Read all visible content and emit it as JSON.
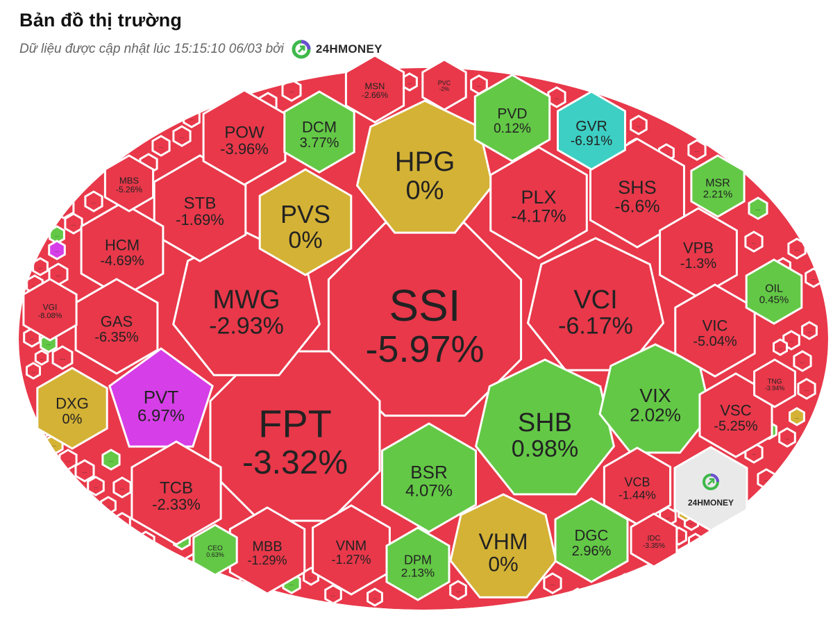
{
  "header": {
    "title": "Bản đồ thị trường",
    "subtitle": "Dữ liệu được cập nhật lúc 15:15:10 06/03 bởi",
    "brand": "24HMONEY"
  },
  "colors": {
    "down": "#e8384a",
    "up": "#63c846",
    "flat": "#d4b235",
    "ceiling": "#d63ee8",
    "floor": "#3dcfc3",
    "logo_green": "#3fb84a",
    "logo_purple": "#6a4fd1"
  },
  "more_label": "...",
  "center_logo": "24HMONEY",
  "tiles": [
    {
      "id": "SSI",
      "symbol": "SSI",
      "change": "-5.97%",
      "status": "down"
    },
    {
      "id": "FPT",
      "symbol": "FPT",
      "change": "-3.32%",
      "status": "down"
    },
    {
      "id": "MWG",
      "symbol": "MWG",
      "change": "-2.93%",
      "status": "down"
    },
    {
      "id": "VCI",
      "symbol": "VCI",
      "change": "-6.17%",
      "status": "down"
    },
    {
      "id": "HPG",
      "symbol": "HPG",
      "change": "0%",
      "status": "flat"
    },
    {
      "id": "SHB",
      "symbol": "SHB",
      "change": "0.98%",
      "status": "up"
    },
    {
      "id": "PVS",
      "symbol": "PVS",
      "change": "0%",
      "status": "flat"
    },
    {
      "id": "PLX",
      "symbol": "PLX",
      "change": "-4.17%",
      "status": "down"
    },
    {
      "id": "SHS",
      "symbol": "SHS",
      "change": "-6.6%",
      "status": "down"
    },
    {
      "id": "STB",
      "symbol": "STB",
      "change": "-1.69%",
      "status": "down"
    },
    {
      "id": "POW",
      "symbol": "POW",
      "change": "-3.96%",
      "status": "down"
    },
    {
      "id": "DCM",
      "symbol": "DCM",
      "change": "3.77%",
      "status": "up"
    },
    {
      "id": "PVD",
      "symbol": "PVD",
      "change": "0.12%",
      "status": "up"
    },
    {
      "id": "GVR",
      "symbol": "GVR",
      "change": "-6.91%",
      "status": "floor"
    },
    {
      "id": "HCM",
      "symbol": "HCM",
      "change": "-4.69%",
      "status": "down"
    },
    {
      "id": "GAS",
      "symbol": "GAS",
      "change": "-6.35%",
      "status": "down"
    },
    {
      "id": "PVT",
      "symbol": "PVT",
      "change": "6.97%",
      "status": "ceiling"
    },
    {
      "id": "DXG",
      "symbol": "DXG",
      "change": "0%",
      "status": "flat"
    },
    {
      "id": "TCB",
      "symbol": "TCB",
      "change": "-2.33%",
      "status": "down"
    },
    {
      "id": "MBB",
      "symbol": "MBB",
      "change": "-1.29%",
      "status": "down"
    },
    {
      "id": "VNM",
      "symbol": "VNM",
      "change": "-1.27%",
      "status": "down"
    },
    {
      "id": "BSR",
      "symbol": "BSR",
      "change": "4.07%",
      "status": "up"
    },
    {
      "id": "DPM",
      "symbol": "DPM",
      "change": "2.13%",
      "status": "up"
    },
    {
      "id": "VHM",
      "symbol": "VHM",
      "change": "0%",
      "status": "flat"
    },
    {
      "id": "DGC",
      "symbol": "DGC",
      "change": "2.96%",
      "status": "up"
    },
    {
      "id": "VIX",
      "symbol": "VIX",
      "change": "2.02%",
      "status": "up"
    },
    {
      "id": "VPB",
      "symbol": "VPB",
      "change": "-1.3%",
      "status": "down"
    },
    {
      "id": "VIC",
      "symbol": "VIC",
      "change": "-5.04%",
      "status": "down"
    },
    {
      "id": "VSC",
      "symbol": "VSC",
      "change": "-5.25%",
      "status": "down"
    },
    {
      "id": "VCB",
      "symbol": "VCB",
      "change": "-1.44%",
      "status": "down"
    },
    {
      "id": "MSR",
      "symbol": "MSR",
      "change": "2.21%",
      "status": "up"
    },
    {
      "id": "OIL",
      "symbol": "OIL",
      "change": "0.45%",
      "status": "up"
    },
    {
      "id": "MBS",
      "symbol": "MBS",
      "change": "-5.26%",
      "status": "down"
    },
    {
      "id": "MSN",
      "symbol": "MSN",
      "change": "-2.66%",
      "status": "down"
    },
    {
      "id": "PVC",
      "symbol": "PVC",
      "change": "-2%",
      "status": "down"
    },
    {
      "id": "VGI",
      "symbol": "VGI",
      "change": "-8.08%",
      "status": "down"
    },
    {
      "id": "CEO",
      "symbol": "CEO",
      "change": "0.63%",
      "status": "up"
    },
    {
      "id": "IDC",
      "symbol": "IDC",
      "change": "-3.35%",
      "status": "down"
    },
    {
      "id": "TNG",
      "symbol": "TNG",
      "change": "-3.94%",
      "status": "down"
    }
  ],
  "small_tiles": [
    "down",
    "down",
    "down",
    "up",
    "down",
    "down",
    "down",
    "down",
    "up",
    "down",
    "ceiling",
    "down",
    "down",
    "down",
    "flat",
    "down",
    "down",
    "down",
    "up",
    "down",
    "down",
    "down",
    "down",
    "up",
    "down",
    "down",
    "up",
    "down",
    "down",
    "down",
    "down",
    "down",
    "down",
    "down",
    "down",
    "down",
    "flat",
    "down",
    "down",
    "down",
    "down",
    "down",
    "up",
    "down",
    "flat",
    "down",
    "down",
    "down",
    "down",
    "down",
    "down",
    "down",
    "up",
    "down",
    "down",
    "down",
    "down",
    "down",
    "down",
    "down",
    "down",
    "down",
    "down",
    "down",
    "down",
    "down",
    "down",
    "down",
    "down",
    "down"
  ]
}
